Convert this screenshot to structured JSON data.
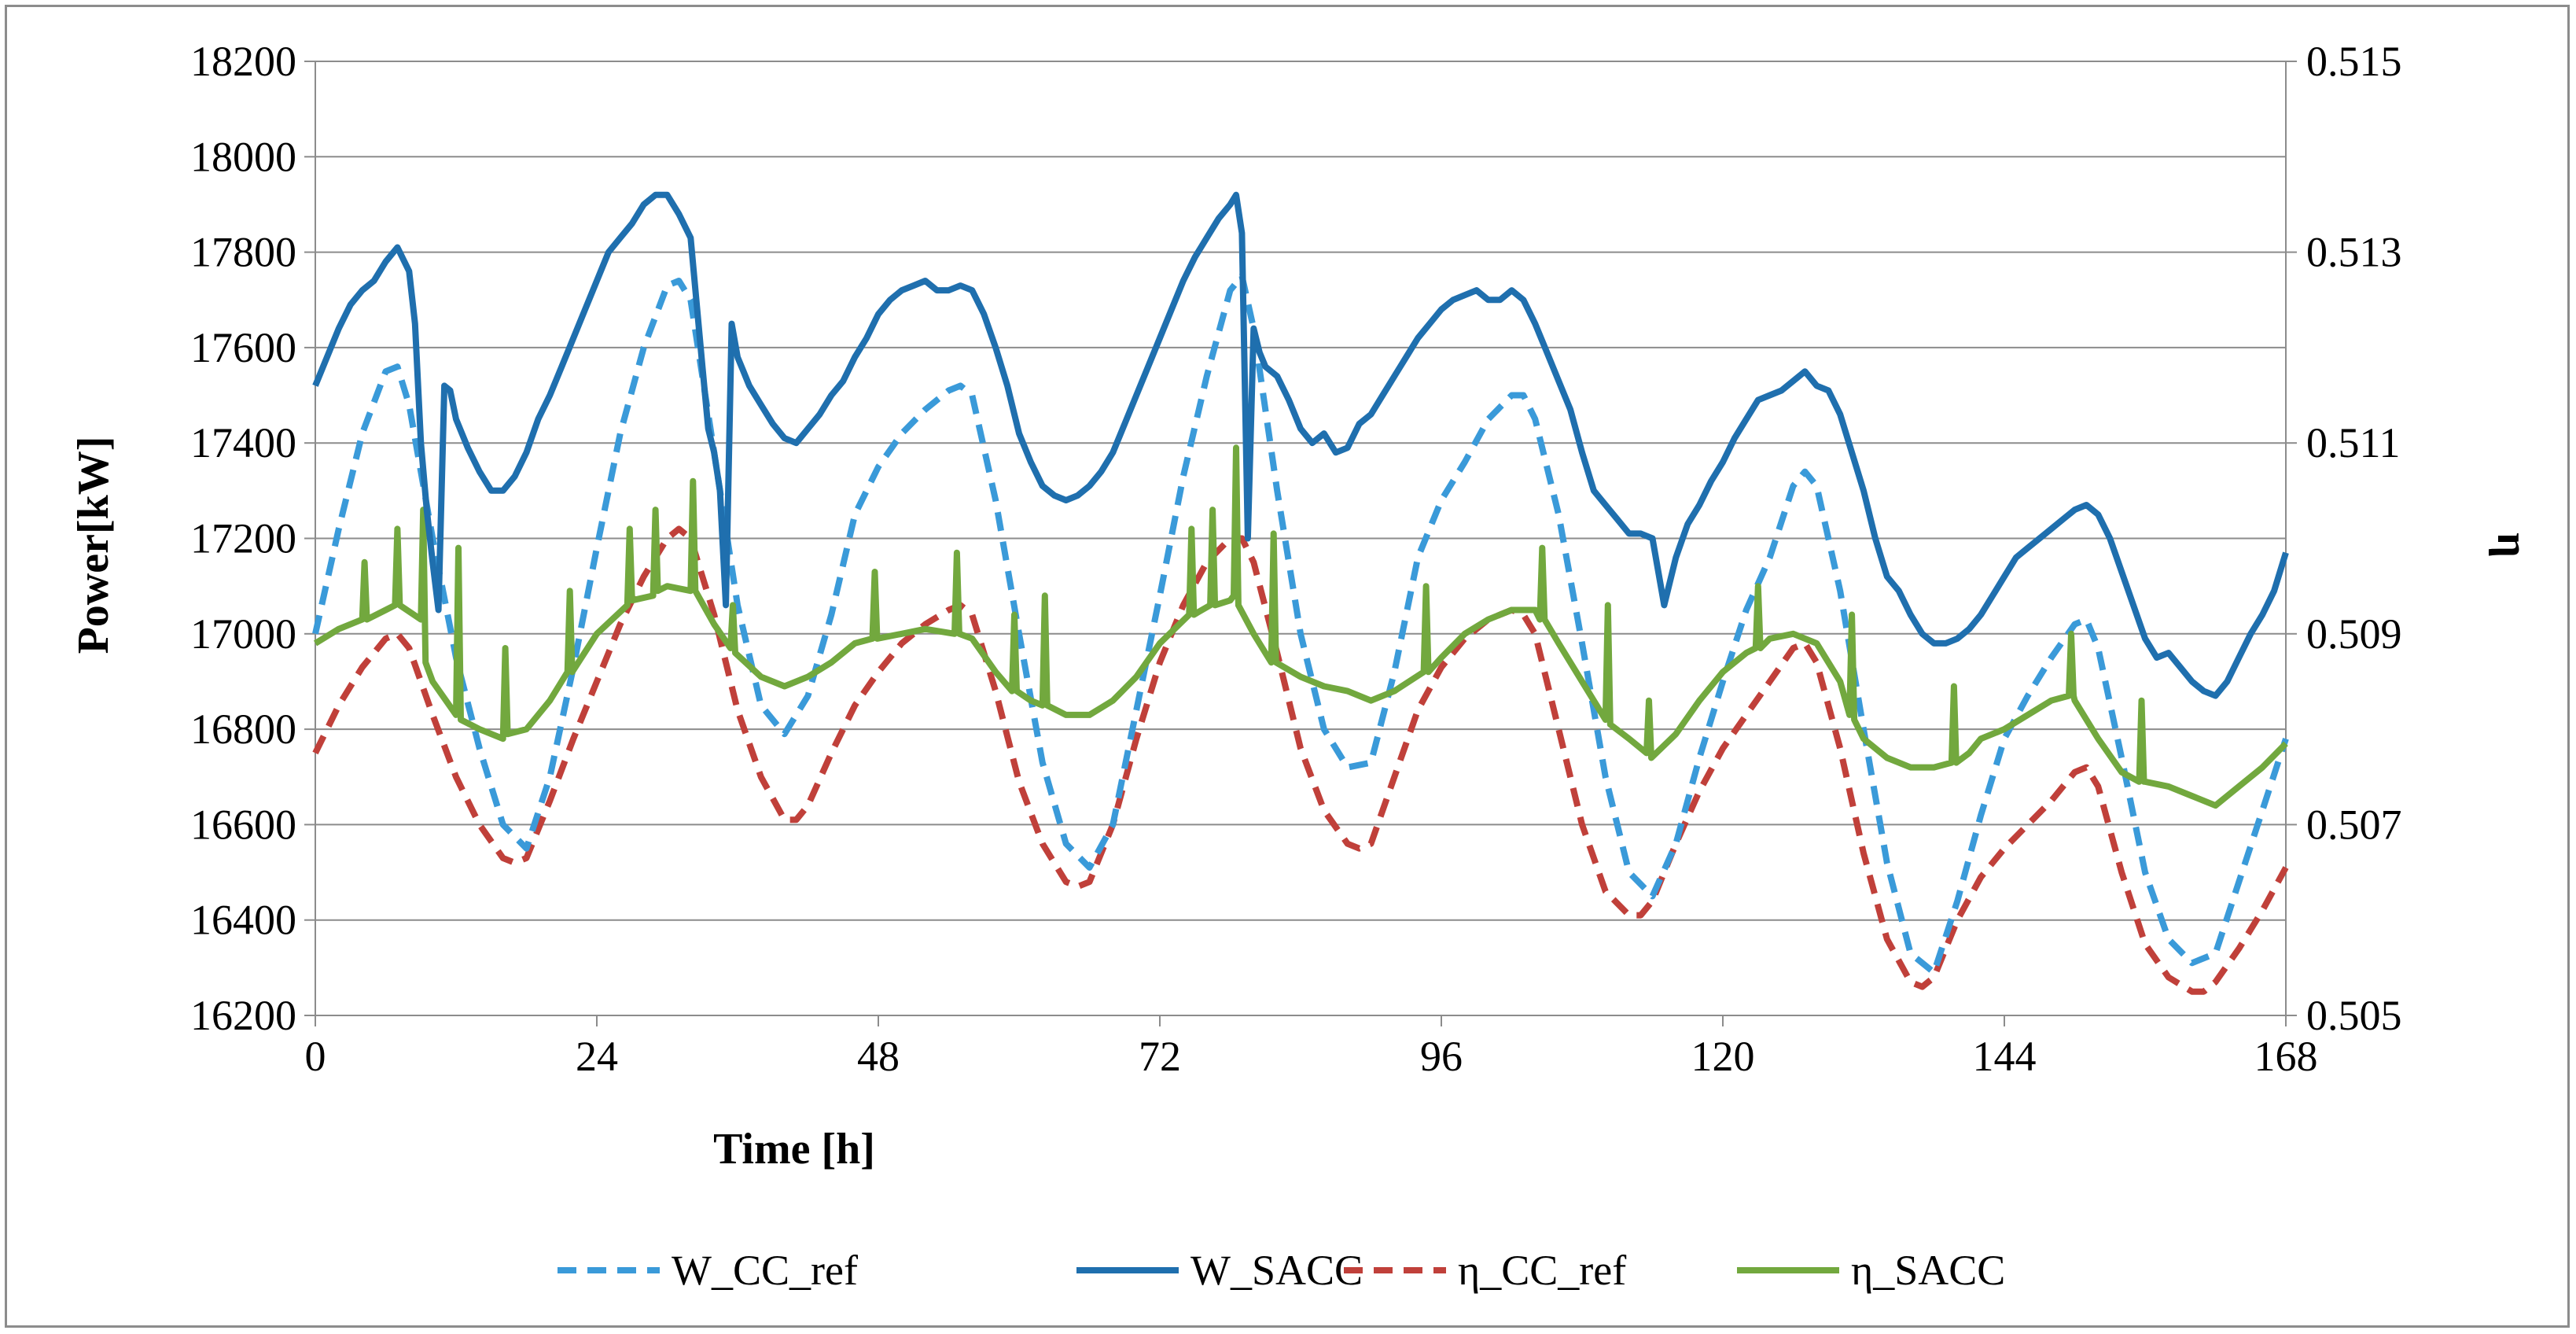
{
  "chart_data": {
    "type": "line",
    "title": "",
    "xlabel": "Time  [h]",
    "ylabel": "Power[kW]",
    "y2label": "η",
    "xlim": [
      0,
      168
    ],
    "ylim": [
      16200,
      18200
    ],
    "y2lim": [
      0.505,
      0.515
    ],
    "xticks": [
      0,
      24,
      48,
      72,
      96,
      120,
      144,
      168
    ],
    "yticks": [
      16200,
      16400,
      16600,
      16800,
      17000,
      17200,
      17400,
      17600,
      17800,
      18000,
      18200
    ],
    "y2ticks": [
      0.505,
      0.507,
      0.509,
      0.511,
      0.513,
      0.515
    ],
    "y2tick_labels": [
      "0.505",
      "0.507",
      "0.509",
      "0.511",
      "0.513",
      "0.515"
    ],
    "grid": "horizontal",
    "legend_position": "bottom",
    "series": [
      {
        "name": "W_CC_ref",
        "axis": "left",
        "color": "#3a9ad9",
        "style": "dashed",
        "x": [
          0,
          2,
          4,
          6,
          7,
          8,
          10,
          12,
          14,
          16,
          18,
          20,
          22,
          24,
          26,
          28,
          30,
          31,
          32,
          34,
          36,
          38,
          40,
          42,
          44,
          46,
          48,
          50,
          52,
          54,
          55,
          56,
          58,
          60,
          62,
          64,
          66,
          68,
          70,
          72,
          74,
          76,
          78,
          79,
          80,
          82,
          84,
          86,
          88,
          90,
          92,
          94,
          96,
          98,
          100,
          102,
          103,
          104,
          106,
          108,
          110,
          112,
          114,
          116,
          118,
          120,
          122,
          124,
          126,
          127,
          128,
          130,
          132,
          134,
          136,
          138,
          140,
          142,
          144,
          146,
          148,
          150,
          151,
          152,
          154,
          156,
          158,
          160,
          162,
          164,
          166,
          168
        ],
        "values": [
          17000,
          17220,
          17420,
          17550,
          17560,
          17480,
          17200,
          16950,
          16760,
          16600,
          16550,
          16700,
          16930,
          17180,
          17420,
          17600,
          17730,
          17740,
          17700,
          17380,
          17060,
          16850,
          16790,
          16870,
          17040,
          17250,
          17350,
          17420,
          17470,
          17510,
          17520,
          17500,
          17280,
          17000,
          16730,
          16560,
          16510,
          16600,
          16840,
          17080,
          17330,
          17540,
          17720,
          17750,
          17640,
          17300,
          17000,
          16800,
          16720,
          16730,
          16920,
          17160,
          17280,
          17360,
          17450,
          17500,
          17500,
          17450,
          17250,
          16980,
          16700,
          16500,
          16450,
          16560,
          16740,
          16900,
          17050,
          17160,
          17310,
          17340,
          17310,
          17090,
          16800,
          16520,
          16330,
          16290,
          16440,
          16620,
          16780,
          16870,
          16950,
          17020,
          17030,
          16970,
          16740,
          16500,
          16360,
          16310,
          16330,
          16480,
          16630,
          16780
        ]
      },
      {
        "name": "W_SACC",
        "axis": "left",
        "color": "#1f6fae",
        "style": "solid",
        "x": [
          0,
          1,
          2,
          3,
          4,
          5,
          6,
          7,
          8,
          8.5,
          9,
          9.5,
          10,
          10.5,
          11,
          11.5,
          12,
          13,
          14,
          15,
          16,
          17,
          18,
          19,
          20,
          21,
          22,
          23,
          24,
          25,
          26,
          27,
          28,
          29,
          30,
          31,
          32,
          33,
          33.5,
          34,
          34.5,
          35,
          35.5,
          36,
          36.5,
          37,
          38,
          39,
          40,
          41,
          42,
          43,
          44,
          45,
          46,
          47,
          48,
          49,
          50,
          51,
          52,
          53,
          54,
          55,
          56,
          57,
          58,
          59,
          60,
          61,
          62,
          63,
          64,
          65,
          66,
          67,
          68,
          69,
          70,
          71,
          72,
          73,
          74,
          75,
          76,
          77,
          78,
          78.5,
          79,
          79.5,
          80,
          80.5,
          81,
          82,
          83,
          84,
          85,
          86,
          87,
          88,
          89,
          90,
          91,
          92,
          93,
          94,
          95,
          96,
          97,
          98,
          99,
          100,
          101,
          102,
          103,
          104,
          105,
          106,
          107,
          108,
          109,
          110,
          111,
          112,
          113,
          114,
          115,
          116,
          117,
          118,
          119,
          120,
          121,
          122,
          123,
          124,
          125,
          126,
          127,
          128,
          129,
          130,
          131,
          132,
          133,
          134,
          135,
          136,
          137,
          138,
          139,
          140,
          141,
          142,
          143,
          144,
          145,
          146,
          147,
          148,
          149,
          150,
          151,
          152,
          153,
          154,
          155,
          156,
          157,
          158,
          159,
          160,
          161,
          162,
          163,
          164,
          165,
          166,
          167,
          168
        ],
        "values": [
          17520,
          17580,
          17640,
          17690,
          17720,
          17740,
          17780,
          17810,
          17760,
          17650,
          17400,
          17260,
          17150,
          17050,
          17520,
          17510,
          17450,
          17390,
          17340,
          17300,
          17300,
          17330,
          17380,
          17450,
          17500,
          17560,
          17620,
          17680,
          17740,
          17800,
          17830,
          17860,
          17900,
          17920,
          17920,
          17880,
          17830,
          17560,
          17430,
          17380,
          17300,
          17060,
          17650,
          17580,
          17550,
          17520,
          17480,
          17440,
          17410,
          17400,
          17430,
          17460,
          17500,
          17530,
          17580,
          17620,
          17670,
          17700,
          17720,
          17730,
          17740,
          17720,
          17720,
          17730,
          17720,
          17670,
          17600,
          17520,
          17420,
          17360,
          17310,
          17290,
          17280,
          17290,
          17310,
          17340,
          17380,
          17440,
          17500,
          17560,
          17620,
          17680,
          17740,
          17790,
          17830,
          17870,
          17900,
          17920,
          17840,
          17200,
          17640,
          17590,
          17560,
          17540,
          17490,
          17430,
          17400,
          17420,
          17380,
          17390,
          17440,
          17460,
          17500,
          17540,
          17580,
          17620,
          17650,
          17680,
          17700,
          17710,
          17720,
          17700,
          17700,
          17720,
          17700,
          17650,
          17590,
          17530,
          17470,
          17380,
          17300,
          17270,
          17240,
          17210,
          17210,
          17200,
          17060,
          17160,
          17230,
          17270,
          17320,
          17360,
          17410,
          17450,
          17490,
          17500,
          17510,
          17530,
          17550,
          17520,
          17510,
          17460,
          17380,
          17300,
          17200,
          17120,
          17090,
          17040,
          17000,
          16980,
          16980,
          16990,
          17010,
          17040,
          17080,
          17120,
          17160,
          17180,
          17200,
          17220,
          17240,
          17260,
          17270,
          17250,
          17200,
          17130,
          17060,
          16990,
          16950,
          16960,
          16930,
          16900,
          16880,
          16870,
          16900,
          16950,
          17000,
          17040,
          17090,
          17170
        ]
      },
      {
        "name": "η_CC_ref",
        "axis": "right",
        "color": "#c0403a",
        "style": "dashed",
        "x": [
          0,
          2,
          4,
          6,
          7,
          8,
          10,
          12,
          14,
          16,
          17,
          18,
          20,
          22,
          24,
          26,
          28,
          30,
          31,
          32,
          34,
          36,
          38,
          40,
          41,
          42,
          44,
          46,
          48,
          50,
          52,
          54,
          55,
          56,
          58,
          60,
          62,
          64,
          65,
          66,
          68,
          70,
          72,
          74,
          76,
          78,
          79,
          80,
          82,
          84,
          86,
          88,
          89,
          90,
          92,
          94,
          96,
          98,
          100,
          102,
          103,
          104,
          106,
          108,
          110,
          112,
          113,
          114,
          116,
          118,
          120,
          122,
          124,
          126,
          127,
          128,
          130,
          132,
          134,
          136,
          137,
          138,
          140,
          142,
          144,
          146,
          148,
          150,
          151,
          152,
          154,
          156,
          158,
          160,
          161,
          162,
          164,
          166,
          168
        ],
        "values": [
          0.50775,
          0.50825,
          0.50865,
          0.50895,
          0.509,
          0.50885,
          0.50815,
          0.5075,
          0.507,
          0.50665,
          0.5066,
          0.50665,
          0.50725,
          0.5079,
          0.5085,
          0.5091,
          0.5096,
          0.51,
          0.5101,
          0.51,
          0.5092,
          0.5082,
          0.5075,
          0.50705,
          0.50705,
          0.5072,
          0.50775,
          0.50825,
          0.5086,
          0.5089,
          0.5091,
          0.50925,
          0.5093,
          0.5092,
          0.5084,
          0.50745,
          0.5068,
          0.5064,
          0.50635,
          0.5064,
          0.507,
          0.5079,
          0.5087,
          0.5093,
          0.50975,
          0.51,
          0.51,
          0.50975,
          0.5088,
          0.5078,
          0.50715,
          0.5068,
          0.50675,
          0.5068,
          0.5075,
          0.5082,
          0.50865,
          0.50895,
          0.50915,
          0.50925,
          0.5092,
          0.509,
          0.508,
          0.507,
          0.5063,
          0.50605,
          0.50605,
          0.5062,
          0.5068,
          0.50735,
          0.5078,
          0.50815,
          0.5085,
          0.50885,
          0.5089,
          0.5087,
          0.5078,
          0.5067,
          0.5058,
          0.50535,
          0.5053,
          0.5054,
          0.506,
          0.50645,
          0.50675,
          0.507,
          0.50725,
          0.50755,
          0.5076,
          0.5074,
          0.5065,
          0.50575,
          0.5054,
          0.50525,
          0.50525,
          0.50535,
          0.5057,
          0.5061,
          0.50655
        ]
      },
      {
        "name": "η_SACC",
        "axis": "right",
        "color": "#72a83e",
        "style": "solid",
        "x": [
          0,
          2,
          4,
          4.2,
          4.4,
          6,
          6.8,
          7,
          7.2,
          9,
          9.2,
          9.4,
          10,
          12,
          12.2,
          12.4,
          14,
          16,
          16.2,
          16.4,
          18,
          20,
          21.5,
          21.7,
          21.9,
          24,
          26.6,
          26.8,
          27,
          28.8,
          29,
          29.2,
          30,
          32,
          32.2,
          32.4,
          34,
          35.4,
          35.6,
          35.8,
          38,
          40,
          42,
          44,
          46,
          47.5,
          47.7,
          47.9,
          50,
          52,
          54.5,
          54.7,
          54.9,
          56,
          58,
          59.4,
          59.6,
          59.8,
          61,
          62,
          62.2,
          62.4,
          64,
          66,
          68,
          70,
          72,
          74.5,
          74.7,
          74.9,
          76.3,
          76.5,
          76.7,
          78,
          78.3,
          78.5,
          78.7,
          80,
          81.5,
          81.7,
          81.9,
          84,
          86,
          88,
          90,
          92,
          94.5,
          94.7,
          94.9,
          96,
          98,
          100,
          102,
          104,
          104.4,
          104.6,
          104.8,
          106,
          108,
          110,
          110.2,
          110.4,
          112,
          113.5,
          113.7,
          113.9,
          116,
          118,
          120,
          122,
          122.8,
          123,
          123.2,
          124,
          126,
          128,
          130,
          130.8,
          131,
          131.2,
          132,
          134,
          136,
          138,
          139.5,
          139.7,
          139.9,
          141,
          142,
          144,
          146,
          148,
          149.5,
          149.7,
          149.9,
          150,
          152,
          154,
          155.5,
          155.7,
          155.9,
          156,
          158,
          160,
          162,
          164,
          166,
          168
        ],
        "values": [
          0.5089,
          0.50905,
          0.50915,
          0.50975,
          0.50915,
          0.50925,
          0.5093,
          0.5101,
          0.5093,
          0.50915,
          0.5103,
          0.5087,
          0.5085,
          0.50815,
          0.5099,
          0.5081,
          0.508,
          0.5079,
          0.50885,
          0.50795,
          0.508,
          0.5083,
          0.5086,
          0.50945,
          0.5086,
          0.509,
          0.5093,
          0.5101,
          0.50935,
          0.5094,
          0.5103,
          0.50945,
          0.5095,
          0.50945,
          0.5106,
          0.50945,
          0.5091,
          0.50885,
          0.5093,
          0.5088,
          0.50855,
          0.50845,
          0.50855,
          0.5087,
          0.5089,
          0.50895,
          0.50965,
          0.50895,
          0.509,
          0.50905,
          0.509,
          0.50985,
          0.509,
          0.50895,
          0.5086,
          0.5084,
          0.5092,
          0.5084,
          0.5083,
          0.50825,
          0.5094,
          0.50825,
          0.50815,
          0.50815,
          0.5083,
          0.50855,
          0.5089,
          0.5092,
          0.5101,
          0.5092,
          0.5093,
          0.5103,
          0.5093,
          0.50935,
          0.5094,
          0.51095,
          0.5093,
          0.509,
          0.5087,
          0.51005,
          0.5087,
          0.50855,
          0.50845,
          0.5084,
          0.5083,
          0.5084,
          0.5086,
          0.5095,
          0.5086,
          0.50875,
          0.509,
          0.50915,
          0.50925,
          0.50925,
          0.50915,
          0.5099,
          0.50915,
          0.5089,
          0.5085,
          0.5081,
          0.5093,
          0.50805,
          0.5079,
          0.50775,
          0.5083,
          0.5077,
          0.50795,
          0.5083,
          0.5086,
          0.5088,
          0.50885,
          0.5095,
          0.50885,
          0.50895,
          0.509,
          0.5089,
          0.5085,
          0.50815,
          0.5092,
          0.5081,
          0.5079,
          0.5077,
          0.5076,
          0.5076,
          0.50765,
          0.50845,
          0.50765,
          0.50775,
          0.5079,
          0.508,
          0.50815,
          0.5083,
          0.50835,
          0.509,
          0.50835,
          0.5083,
          0.5079,
          0.50755,
          0.50745,
          0.5083,
          0.50745,
          0.50745,
          0.5074,
          0.5073,
          0.5072,
          0.5074,
          0.5076,
          0.50785
        ]
      }
    ]
  }
}
